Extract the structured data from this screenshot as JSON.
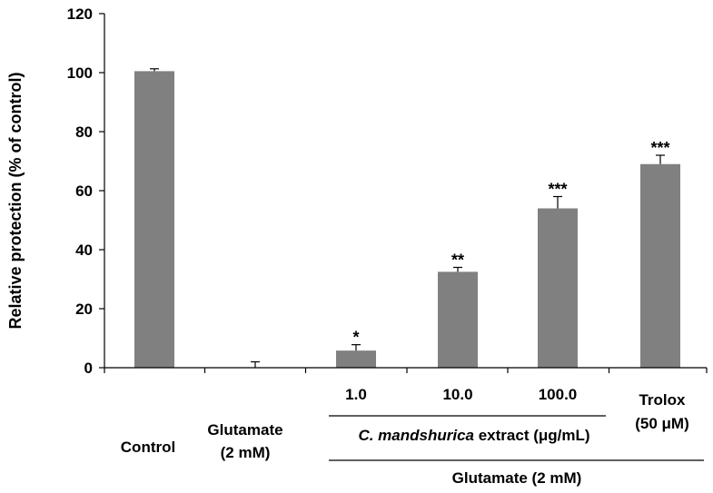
{
  "chart_data": {
    "type": "bar",
    "categories": [
      "Control",
      "Glutamate",
      "1.0",
      "10.0",
      "100.0",
      "Trolox"
    ],
    "values": [
      100.5,
      0,
      5.8,
      32.5,
      54.0,
      69.0
    ],
    "errors": [
      0.8,
      2.0,
      2.0,
      1.5,
      4.0,
      3.0
    ],
    "significance": [
      "",
      "",
      "*",
      "**",
      "***",
      "***"
    ],
    "ylabel": "Relative protection (% of control)",
    "xlabel": "",
    "ylim": [
      0,
      120
    ],
    "yticks": [
      0,
      20,
      40,
      60,
      80,
      100,
      120
    ],
    "bar_color": "#808080",
    "legend": "none",
    "grid": false,
    "category_labels": {
      "control": "Control",
      "glutamate_line1": "Glutamate",
      "glutamate_line2": "(2 mM)",
      "trolox_line1": "Trolox",
      "trolox_line2": "(50 μM)"
    },
    "group_labels": {
      "extract_species": "C. mandshurica",
      "extract_rest": " extract (μg/mL)",
      "treatment": "Glutamate (2 mM)"
    }
  }
}
